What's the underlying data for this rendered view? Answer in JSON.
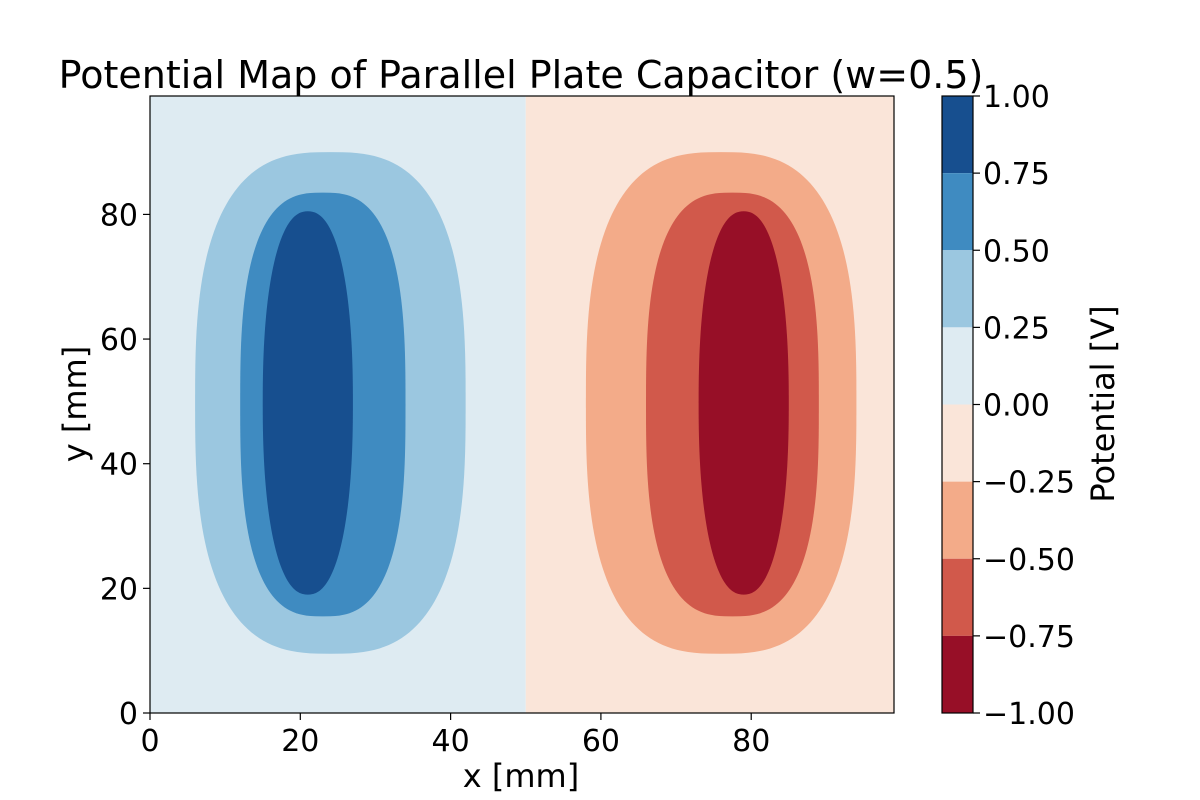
{
  "chart_data": {
    "type": "heatmap",
    "subtype": "filled-contour",
    "title": "Potential Map of Parallel Plate Capacitor (w=0.5)",
    "xlabel": "x [mm]",
    "ylabel": "y [mm]",
    "xlim": [
      0,
      99
    ],
    "ylim": [
      0,
      99
    ],
    "xticks": [
      0,
      20,
      40,
      60,
      80
    ],
    "yticks": [
      0,
      20,
      40,
      60,
      80
    ],
    "colormap": "RdBu",
    "colorbar": {
      "label": "Potential [V]",
      "range": [
        -1.0,
        1.0
      ],
      "ticks": [
        1.0,
        0.75,
        0.5,
        0.25,
        0.0,
        -0.25,
        -0.5,
        -0.75,
        -1.0
      ],
      "tick_labels": [
        "1.00",
        "0.75",
        "0.50",
        "0.25",
        "0.00",
        "−0.25",
        "−0.50",
        "−0.75",
        "−1.00"
      ],
      "bands": [
        {
          "from": 0.75,
          "to": 1.0,
          "color": "#174f8f"
        },
        {
          "from": 0.5,
          "to": 0.75,
          "color": "#3f8bc1"
        },
        {
          "from": 0.25,
          "to": 0.5,
          "color": "#9bc7e0"
        },
        {
          "from": 0.0,
          "to": 0.25,
          "color": "#deebf2"
        },
        {
          "from": -0.25,
          "to": 0.0,
          "color": "#fae5d9"
        },
        {
          "from": -0.5,
          "to": -0.25,
          "color": "#f3ab89"
        },
        {
          "from": -0.75,
          "to": -0.5,
          "color": "#d1594b"
        },
        {
          "from": -1.0,
          "to": -0.75,
          "color": "#970f27"
        }
      ]
    },
    "regions": [
      {
        "name": "left half",
        "x": [
          0,
          50
        ],
        "y": [
          0,
          99
        ],
        "level": 0.125
      },
      {
        "name": "right half",
        "x": [
          50,
          99
        ],
        "y": [
          0,
          99
        ],
        "level": -0.125
      }
    ],
    "contours": [
      {
        "center_x": 20.5,
        "center_y": 49.5,
        "level": 0.375,
        "x_extent": [
          6,
          42
        ],
        "y_extent": [
          9.5,
          90
        ]
      },
      {
        "center_x": 20.5,
        "center_y": 49.5,
        "level": 0.625,
        "x_extent": [
          12,
          34
        ],
        "y_extent": [
          15.5,
          83.5
        ]
      },
      {
        "center_x": 20.5,
        "center_y": 49.5,
        "level": 0.875,
        "x_extent": [
          15,
          27
        ],
        "y_extent": [
          19,
          80.5
        ]
      },
      {
        "center_x": 80,
        "center_y": 49.5,
        "level": -0.375,
        "x_extent": [
          58,
          94
        ],
        "y_extent": [
          9.5,
          90
        ]
      },
      {
        "center_x": 80,
        "center_y": 49.5,
        "level": -0.625,
        "x_extent": [
          66,
          89
        ],
        "y_extent": [
          15.5,
          83.5
        ]
      },
      {
        "center_x": 80,
        "center_y": 49.5,
        "level": -0.875,
        "x_extent": [
          73,
          85
        ],
        "y_extent": [
          19,
          80.5
        ]
      }
    ]
  }
}
